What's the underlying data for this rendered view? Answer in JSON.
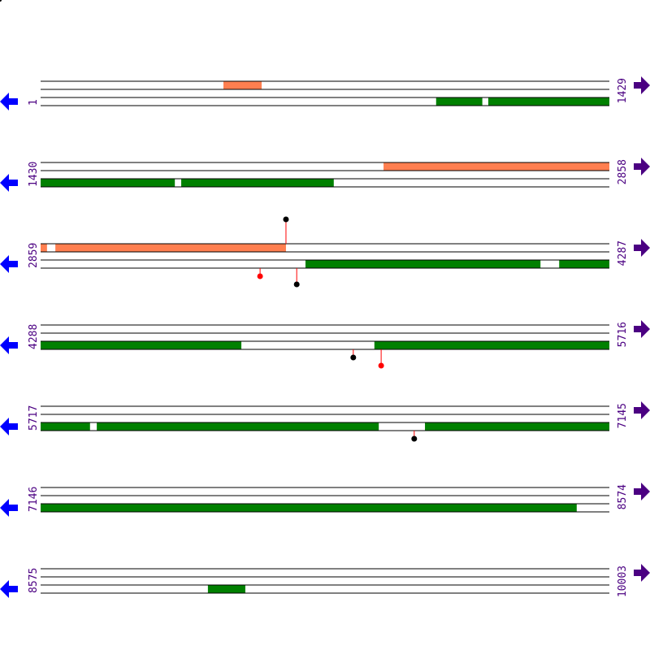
{
  "colors": {
    "forward_feature": "#ff7f50",
    "reverse_feature": "#008000",
    "left_arrow": "#0000ff",
    "right_arrow": "#4b0082",
    "label": "#4b0082",
    "stem": "#ff0000",
    "marker_black": "#000000",
    "marker_red": "#ff0000"
  },
  "icons": {
    "left": "arrow-left-icon",
    "right": "arrow-right-icon"
  },
  "rows": [
    {
      "start": "1",
      "end": "1429",
      "s": 1,
      "e": 1429,
      "top": [
        [
          460,
          556
        ]
      ],
      "bottom": [
        [
          994,
          1110
        ],
        [
          1125,
          1429
        ]
      ],
      "markers": []
    },
    {
      "start": "1430",
      "end": "2858",
      "s": 1430,
      "e": 2858,
      "top": [
        [
          2291,
          2858
        ]
      ],
      "bottom": [
        [
          1430,
          1767
        ],
        [
          1783,
          2166
        ]
      ],
      "markers": []
    },
    {
      "start": "2859",
      "end": "4287",
      "s": 2859,
      "e": 4287,
      "top": [
        [
          2859,
          2875
        ],
        [
          2896,
          3475
        ]
      ],
      "bottom": [
        [
          3524,
          4114
        ],
        [
          4161,
          4287
        ]
      ],
      "markers": [
        {
          "strand": "top",
          "pos": 3475,
          "color": "black",
          "level": 2
        },
        {
          "strand": "bottom",
          "pos": 3410,
          "color": "red",
          "level": 1
        },
        {
          "strand": "bottom",
          "pos": 3502,
          "color": "black",
          "level": 2
        }
      ]
    },
    {
      "start": "4288",
      "end": "5716",
      "s": 4288,
      "e": 5716,
      "top": [],
      "bottom": [
        [
          4288,
          4792
        ],
        [
          5126,
          5716
        ]
      ],
      "markers": [
        {
          "strand": "bottom",
          "pos": 5073,
          "color": "black",
          "level": 1
        },
        {
          "strand": "bottom",
          "pos": 5143,
          "color": "red",
          "level": 2
        }
      ]
    },
    {
      "start": "5717",
      "end": "7145",
      "s": 5717,
      "e": 7145,
      "top": [],
      "bottom": [
        [
          5717,
          5841
        ],
        [
          5858,
          6566
        ],
        [
          6682,
          7145
        ]
      ],
      "markers": [
        {
          "strand": "bottom",
          "pos": 6655,
          "color": "black",
          "level": 1
        }
      ]
    },
    {
      "start": "7146",
      "end": "8574",
      "s": 7146,
      "e": 8574,
      "top": [],
      "bottom": [
        [
          7146,
          8492
        ]
      ],
      "markers": []
    },
    {
      "start": "8575",
      "end": "10003",
      "s": 8575,
      "e": 10003,
      "top": [],
      "bottom": [
        [
          8995,
          9089
        ]
      ],
      "markers": []
    }
  ]
}
